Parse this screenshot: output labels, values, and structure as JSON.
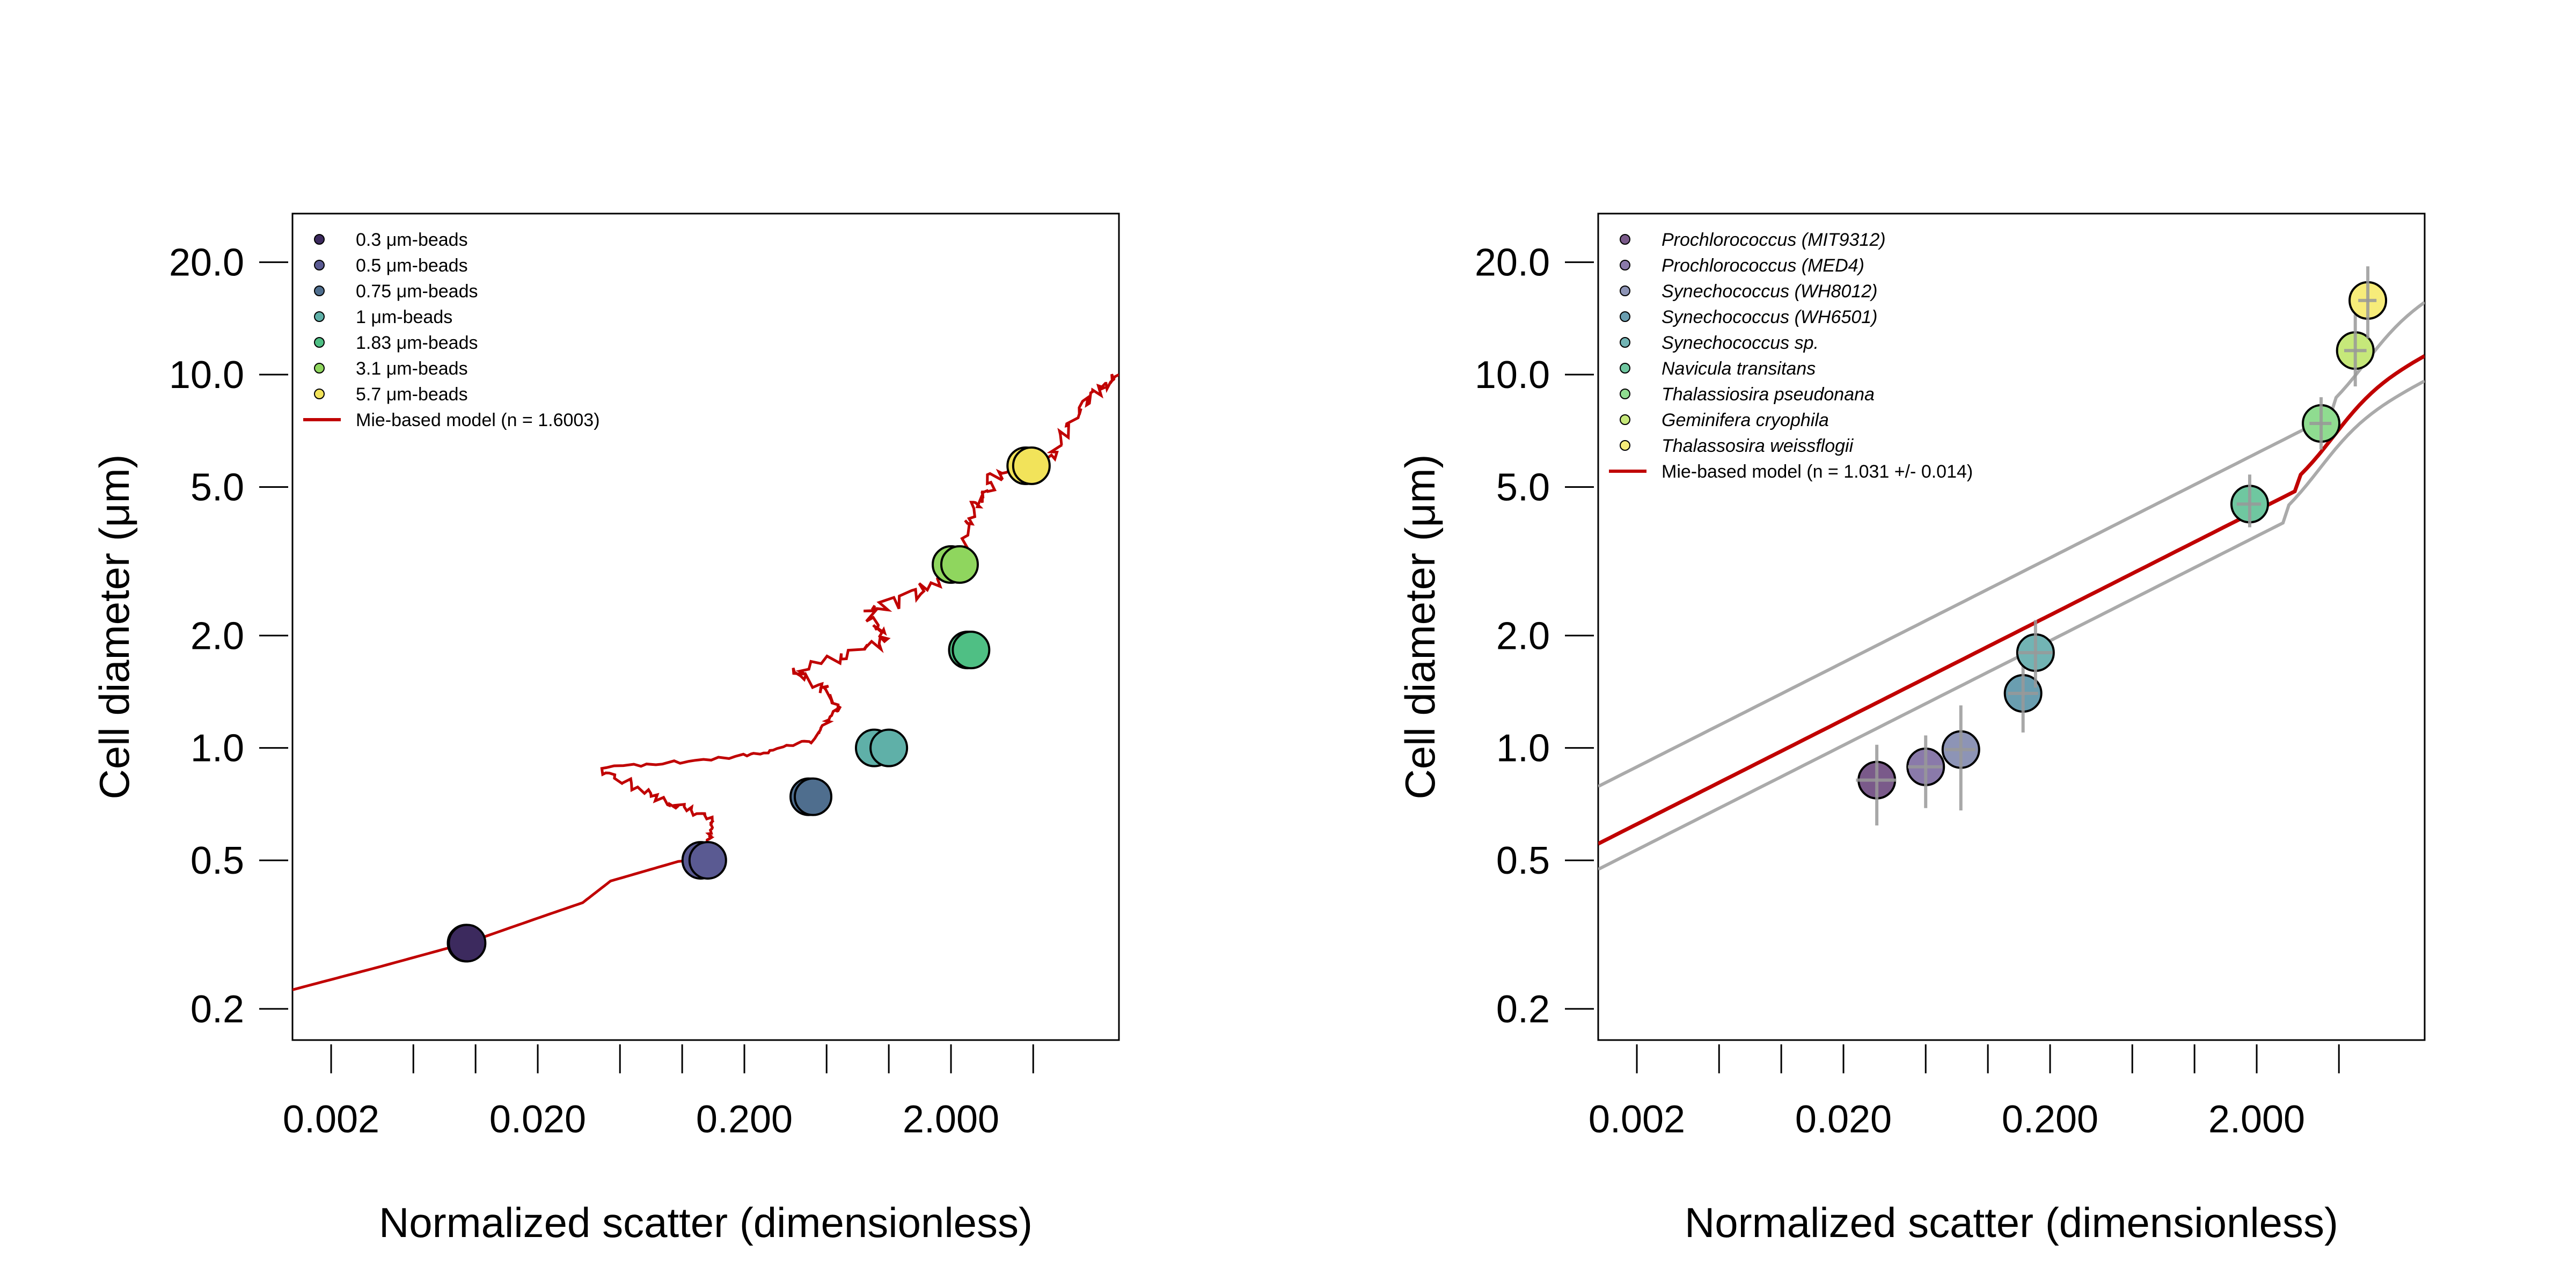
{
  "chart_data": [
    {
      "type": "scatter",
      "title": "",
      "xlabel": "Normalized scatter (dimensionless)",
      "ylabel": "Cell diameter (μm)",
      "x_scale": "log",
      "y_scale": "log",
      "xlim": [
        0.0013,
        13
      ],
      "ylim": [
        0.165,
        27
      ],
      "x_ticks": [
        0.002,
        0.005,
        0.01,
        0.02,
        0.05,
        0.1,
        0.2,
        0.5,
        1,
        2,
        5
      ],
      "x_tick_labels": [
        "0.002",
        "0.020",
        "0.200",
        "2.000"
      ],
      "x_tick_label_values": [
        0.002,
        0.02,
        0.2,
        2
      ],
      "y_ticks": [
        0.2,
        0.5,
        1,
        2,
        5,
        10,
        20
      ],
      "y_tick_labels": [
        "0.2",
        "0.5",
        "1.0",
        "2.0",
        "5.0",
        "10.0",
        "20.0"
      ],
      "grid": false,
      "legend_position": "top-left",
      "series": [
        {
          "name": "0.3 μm-beads",
          "color": "#3c2a5e",
          "points": [
            [
              0.009,
              0.3
            ],
            [
              0.0091,
              0.3
            ]
          ]
        },
        {
          "name": "0.5 μm-beads",
          "color": "#5a5a92",
          "points": [
            [
              0.123,
              0.5
            ],
            [
              0.133,
              0.5
            ]
          ]
        },
        {
          "name": "0.75 μm-beads",
          "color": "#4f6e8e",
          "points": [
            [
              0.41,
              0.74
            ],
            [
              0.43,
              0.74
            ]
          ]
        },
        {
          "name": "1 μm-beads",
          "color": "#5fb0a8",
          "points": [
            [
              0.85,
              1.0
            ],
            [
              1.0,
              1.0
            ]
          ]
        },
        {
          "name": "1.83 μm-beads",
          "color": "#4fbf84",
          "points": [
            [
              2.4,
              1.83
            ],
            [
              2.5,
              1.83
            ]
          ]
        },
        {
          "name": "3.1 μm-beads",
          "color": "#8fd65e",
          "points": [
            [
              2.0,
              3.1
            ],
            [
              2.2,
              3.1
            ]
          ]
        },
        {
          "name": "5.7 μm-beads",
          "color": "#f2e35a",
          "points": [
            [
              4.6,
              5.7
            ],
            [
              4.9,
              5.7
            ]
          ]
        }
      ],
      "model": {
        "name": "Mie-based model (n = 1.6003)",
        "color": "#c00000"
      }
    },
    {
      "type": "scatter",
      "title": "",
      "xlabel": "Normalized scatter (dimensionless)",
      "ylabel": "Cell diameter (μm)",
      "x_scale": "log",
      "y_scale": "log",
      "xlim": [
        0.0013,
        13
      ],
      "ylim": [
        0.165,
        27
      ],
      "x_ticks": [
        0.002,
        0.005,
        0.01,
        0.02,
        0.05,
        0.1,
        0.2,
        0.5,
        1,
        2,
        5
      ],
      "x_tick_labels": [
        "0.002",
        "0.020",
        "0.200",
        "2.000"
      ],
      "x_tick_label_values": [
        0.002,
        0.02,
        0.2,
        2
      ],
      "y_ticks": [
        0.2,
        0.5,
        1,
        2,
        5,
        10,
        20
      ],
      "y_tick_labels": [
        "0.2",
        "0.5",
        "1.0",
        "2.0",
        "5.0",
        "10.0",
        "20.0"
      ],
      "grid": false,
      "legend_position": "top-left",
      "series": [
        {
          "name": "Prochlorococcus (MIT9312)",
          "color": "#7a5a8a",
          "x": 0.029,
          "y": 0.82,
          "xerr": [
            0.023,
            0.036
          ],
          "yerr": [
            0.62,
            1.02
          ]
        },
        {
          "name": "Prochlorococcus (MED4)",
          "color": "#8a7aaa",
          "x": 0.05,
          "y": 0.89,
          "xerr": [
            0.041,
            0.06
          ],
          "yerr": [
            0.69,
            1.08
          ]
        },
        {
          "name": "Synechococcus (WH8012)",
          "color": "#8d94b6",
          "x": 0.074,
          "y": 0.99,
          "xerr": [
            0.062,
            0.087
          ],
          "yerr": [
            0.68,
            1.3
          ]
        },
        {
          "name": "Synechococcus (WH6501)",
          "color": "#6a9eb0",
          "x": 0.148,
          "y": 1.4,
          "xerr": [
            0.125,
            0.175
          ],
          "yerr": [
            1.1,
            1.75
          ]
        },
        {
          "name": "Synechococcus sp.",
          "color": "#72b4b4",
          "x": 0.17,
          "y": 1.8,
          "xerr": [
            0.14,
            0.205
          ],
          "yerr": [
            1.45,
            2.2
          ]
        },
        {
          "name": "Navicula transitans",
          "color": "#6fc7a0",
          "x": 1.85,
          "y": 4.5,
          "xerr": [
            1.6,
            2.1
          ],
          "yerr": [
            3.9,
            5.4
          ]
        },
        {
          "name": "Thalassiosira pseudonana",
          "color": "#8fdc90",
          "x": 4.1,
          "y": 7.4,
          "xerr": [
            3.6,
            4.6
          ],
          "yerr": [
            6.3,
            8.7
          ]
        },
        {
          "name": "Geminifera cryophila",
          "color": "#c6e87a",
          "x": 6.0,
          "y": 11.6,
          "xerr": [
            5.3,
            6.8
          ],
          "yerr": [
            9.3,
            14.5
          ]
        },
        {
          "name": "Thalassosira weissflogii",
          "color": "#f7ec7a",
          "x": 6.9,
          "y": 15.8,
          "xerr": [
            6.2,
            7.6
          ],
          "yerr": [
            12.5,
            19.5
          ]
        }
      ],
      "model": {
        "name": "Mie-based model (n = 1.031 +/- 0.014)",
        "color": "#c00000",
        "band_color": "#aaaaaa"
      }
    }
  ]
}
